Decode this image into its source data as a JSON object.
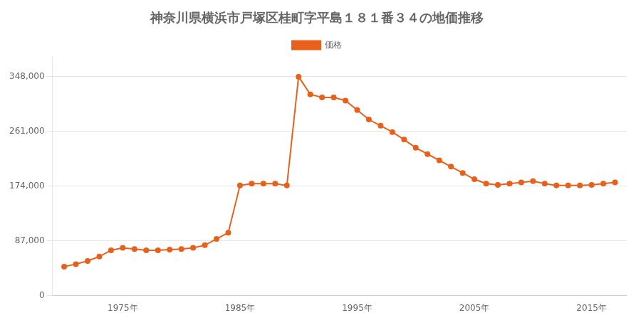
{
  "chart_data": {
    "type": "line",
    "title": "神奈川県横浜市戸塚区桂町字平島１８１番３４の地価推移",
    "x": [
      1970,
      1971,
      1972,
      1973,
      1974,
      1975,
      1976,
      1977,
      1978,
      1979,
      1980,
      1981,
      1982,
      1983,
      1984,
      1985,
      1986,
      1987,
      1988,
      1989,
      1990,
      1991,
      1992,
      1993,
      1994,
      1995,
      1996,
      1997,
      1998,
      1999,
      2000,
      2001,
      2002,
      2003,
      2004,
      2005,
      2006,
      2007,
      2008,
      2009,
      2010,
      2011,
      2012,
      2013,
      2014,
      2015,
      2016,
      2017
    ],
    "series": [
      {
        "name": "価格",
        "color": "#E8601C",
        "marker": "circle",
        "line_style": "solid",
        "values": [
          46000,
          50000,
          55000,
          62000,
          72000,
          76000,
          74000,
          72000,
          72000,
          73000,
          74000,
          76000,
          80000,
          90000,
          100000,
          175000,
          178000,
          178000,
          178000,
          175000,
          348000,
          320000,
          315000,
          315000,
          310000,
          295000,
          280000,
          270000,
          260000,
          248000,
          235000,
          225000,
          215000,
          205000,
          195000,
          185000,
          178000,
          176000,
          178000,
          180000,
          182000,
          178000,
          175000,
          175000,
          175000,
          176000,
          178000,
          180000
        ]
      }
    ],
    "xlim": [
      1969,
      2018
    ],
    "xticks": [
      {
        "value": 1975,
        "label": "1975年"
      },
      {
        "value": 1985,
        "label": "1985年"
      },
      {
        "value": 1995,
        "label": "1995年"
      },
      {
        "value": 2005,
        "label": "2005年"
      },
      {
        "value": 2015,
        "label": "2015年"
      }
    ],
    "ylim": [
      0,
      380000
    ],
    "yticks": [
      0,
      {
        "value": 87000,
        "label": "87,000"
      },
      {
        "value": 174000,
        "label": "174,000"
      },
      {
        "value": 261000,
        "label": "261,000"
      },
      {
        "value": 348000,
        "label": "348,000"
      }
    ],
    "grid": "y",
    "legend": "top"
  }
}
